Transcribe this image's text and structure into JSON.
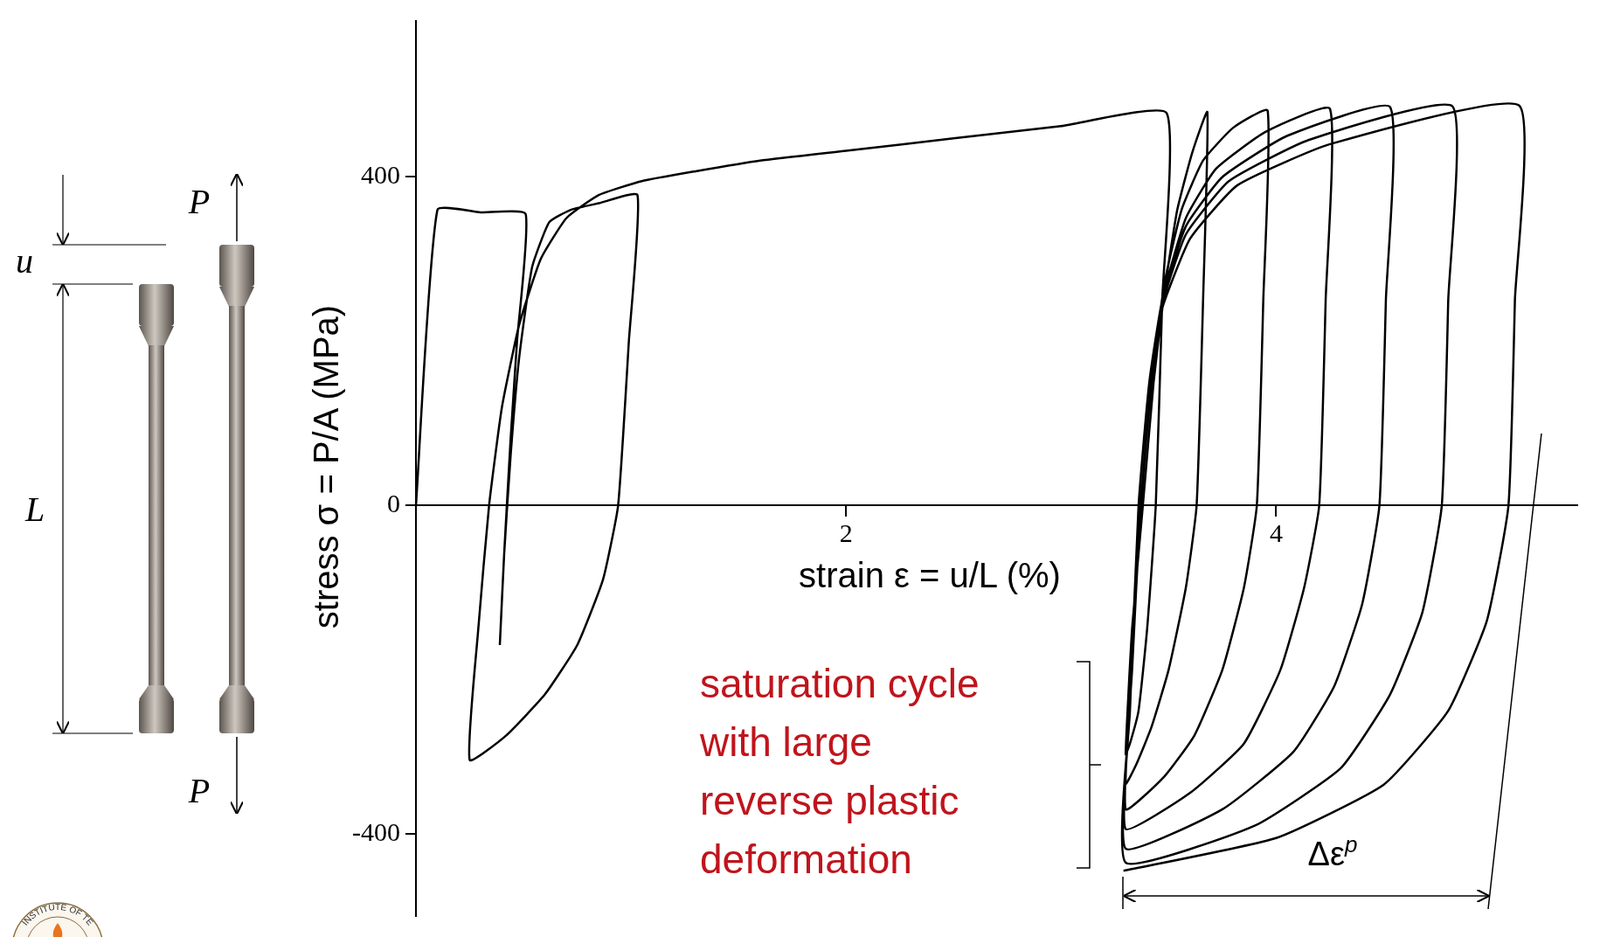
{
  "chart_data": {
    "type": "line",
    "xlabel": "strain ε = u/L (%)",
    "ylabel": "stress σ = P/A (MPa)",
    "xlim": [
      0,
      5.4
    ],
    "ylim": [
      -500,
      590
    ],
    "xticks": [
      2,
      4
    ],
    "yticks": [
      -400,
      0,
      400
    ],
    "grid": false,
    "series": [
      {
        "color": "#000000",
        "x": [
          0,
          0.1,
          0.3,
          0.51,
          0.47,
          0.44,
          0.41,
          0.39,
          0.41,
          0.44,
          0.48,
          0.54,
          0.62,
          0.72,
          0.85,
          1.03,
          0.99,
          0.94,
          0.87,
          0.75,
          0.6,
          0.42,
          0.25,
          0.29,
          0.34,
          0.4,
          0.48,
          0.58,
          0.7,
          0.85,
          1.05,
          1.3,
          1.6,
          2,
          2.5,
          3,
          3.49,
          3.47,
          3.44,
          3.4,
          3.36,
          3.32,
          3.3,
          3.33,
          3.38,
          3.43,
          3.48,
          3.54,
          3.61,
          3.68,
          3.66,
          3.63,
          3.58,
          3.5,
          3.42,
          3.35,
          3.3,
          3.33,
          3.37,
          3.42,
          3.48,
          3.56,
          3.66,
          3.8,
          3.96,
          3.94,
          3.91,
          3.85,
          3.75,
          3.62,
          3.48,
          3.3,
          3.33,
          3.37,
          3.42,
          3.48,
          3.58,
          3.72,
          3.95,
          4.25,
          4.23,
          4.2,
          4.13,
          4.02,
          3.85,
          3.6,
          3.3,
          3.32,
          3.36,
          3.41,
          3.47,
          3.58,
          3.75,
          4.05,
          4.53,
          4.51,
          4.48,
          4.4,
          4.27,
          4.08,
          3.75,
          3.3,
          3.32,
          3.36,
          3.41,
          3.47,
          3.58,
          3.78,
          4.15,
          4.82,
          4.8,
          4.77,
          4.68,
          4.53,
          4.3,
          3.9,
          3.3,
          3.32,
          3.36,
          3.41,
          3.47,
          3.6,
          3.82,
          4.25,
          5.13,
          5.11,
          5.08,
          4.98,
          4.8,
          4.5,
          4.0,
          3.29
        ],
        "values": [
          0,
          360,
          357,
          355,
          200,
          80,
          -60,
          -170,
          -60,
          60,
          180,
          290,
          345,
          360,
          368,
          378,
          200,
          0,
          -90,
          -170,
          -230,
          -280,
          -310,
          -150,
          0,
          120,
          220,
          300,
          350,
          378,
          395,
          407,
          420,
          432,
          447,
          462,
          478,
          250,
          0,
          -150,
          -250,
          -290,
          -303,
          -150,
          0,
          150,
          260,
          360,
          430,
          479,
          250,
          0,
          -100,
          -200,
          -270,
          -315,
          -339,
          -180,
          0,
          150,
          270,
          360,
          420,
          460,
          481,
          250,
          0,
          -100,
          -200,
          -280,
          -330,
          -370,
          -200,
          0,
          150,
          260,
          350,
          410,
          455,
          483,
          250,
          0,
          -100,
          -200,
          -290,
          -350,
          -394,
          -250,
          0,
          150,
          250,
          340,
          400,
          450,
          485,
          250,
          0,
          -120,
          -220,
          -300,
          -370,
          -418,
          -250,
          0,
          150,
          245,
          330,
          395,
          445,
          486,
          250,
          0,
          -130,
          -230,
          -320,
          -390,
          -435,
          -250,
          0,
          150,
          240,
          325,
          390,
          440,
          487,
          250,
          0,
          -140,
          -250,
          -340,
          -405,
          -445
        ]
      }
    ],
    "annotations": [
      {
        "text": [
          "saturation cycle",
          "with large",
          "reverse plastic",
          "deformation"
        ],
        "color": "#c0141c"
      },
      {
        "text": "Δε",
        "superscript": "p",
        "color": "#000000"
      }
    ]
  },
  "specimen": {
    "displacement_label": "u",
    "length_label": "L",
    "load_label": "P"
  },
  "logo": {
    "text": "INSTITUTE OF TE"
  }
}
